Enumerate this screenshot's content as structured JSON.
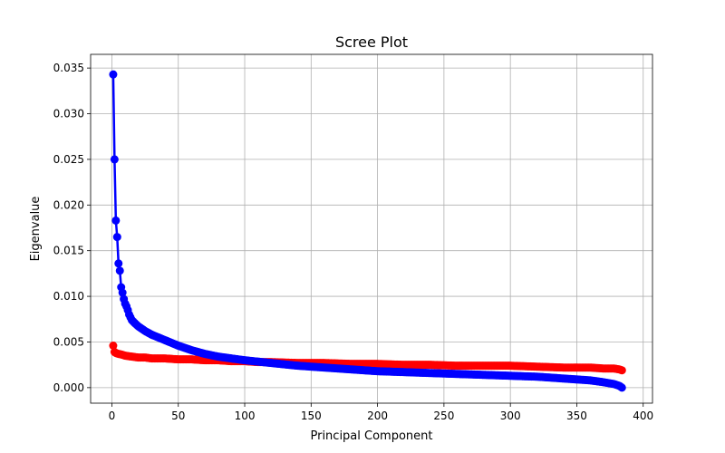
{
  "chart_data": {
    "type": "line",
    "title": "Scree Plot",
    "xlabel": "Principal Component",
    "ylabel": "Eigenvalue",
    "xlim": [
      -16,
      407
    ],
    "ylim": [
      -0.0017,
      0.0365
    ],
    "grid": true,
    "legend": "none",
    "marker": "circle",
    "xticks": [
      {
        "value": 0,
        "label": "0"
      },
      {
        "value": 50,
        "label": "50"
      },
      {
        "value": 100,
        "label": "100"
      },
      {
        "value": 150,
        "label": "150"
      },
      {
        "value": 200,
        "label": "200"
      },
      {
        "value": 250,
        "label": "250"
      },
      {
        "value": 300,
        "label": "300"
      },
      {
        "value": 350,
        "label": "350"
      },
      {
        "value": 400,
        "label": "400"
      }
    ],
    "yticks": [
      {
        "value": 0.0,
        "label": "0.000"
      },
      {
        "value": 0.005,
        "label": "0.005"
      },
      {
        "value": 0.01,
        "label": "0.010"
      },
      {
        "value": 0.015,
        "label": "0.015"
      },
      {
        "value": 0.02,
        "label": "0.020"
      },
      {
        "value": 0.025,
        "label": "0.025"
      },
      {
        "value": 0.03,
        "label": "0.030"
      },
      {
        "value": 0.035,
        "label": "0.035"
      }
    ],
    "series": [
      {
        "color": "#0000ff",
        "x": [
          1,
          2,
          3,
          4,
          5,
          6,
          7,
          8,
          9,
          10,
          11,
          12,
          13,
          14,
          15,
          17,
          20,
          25,
          30,
          35,
          40,
          45,
          50,
          60,
          70,
          80,
          90,
          100,
          120,
          140,
          160,
          180,
          200,
          220,
          240,
          260,
          280,
          300,
          320,
          340,
          360,
          370,
          378,
          382,
          384
        ],
        "y": [
          0.0343,
          0.025,
          0.0183,
          0.0165,
          0.0136,
          0.0128,
          0.011,
          0.0104,
          0.0097,
          0.0092,
          0.0089,
          0.0085,
          0.008,
          0.0077,
          0.0074,
          0.0071,
          0.0067,
          0.0062,
          0.0058,
          0.0055,
          0.0052,
          0.0049,
          0.0046,
          0.0041,
          0.0037,
          0.0034,
          0.0032,
          0.003,
          0.0027,
          0.0024,
          0.0022,
          0.002,
          0.0018,
          0.0017,
          0.0016,
          0.0015,
          0.0014,
          0.0013,
          0.0012,
          0.001,
          0.0008,
          0.0006,
          0.0004,
          0.0002,
          0.0
        ]
      },
      {
        "color": "#ff0000",
        "x": [
          1,
          2,
          3,
          5,
          8,
          10,
          15,
          20,
          25,
          30,
          40,
          50,
          60,
          70,
          80,
          90,
          100,
          110,
          120,
          140,
          160,
          180,
          200,
          220,
          240,
          260,
          280,
          300,
          320,
          340,
          360,
          370,
          378,
          382,
          384
        ],
        "y": [
          0.0046,
          0.0039,
          0.0038,
          0.0037,
          0.0036,
          0.0035,
          0.0034,
          0.0033,
          0.0033,
          0.0032,
          0.0032,
          0.0031,
          0.0031,
          0.003,
          0.003,
          0.0029,
          0.0029,
          0.0028,
          0.0028,
          0.0027,
          0.0027,
          0.0026,
          0.0026,
          0.0025,
          0.0025,
          0.0024,
          0.0024,
          0.0024,
          0.0023,
          0.0022,
          0.0022,
          0.0021,
          0.0021,
          0.002,
          0.0019
        ]
      }
    ]
  }
}
